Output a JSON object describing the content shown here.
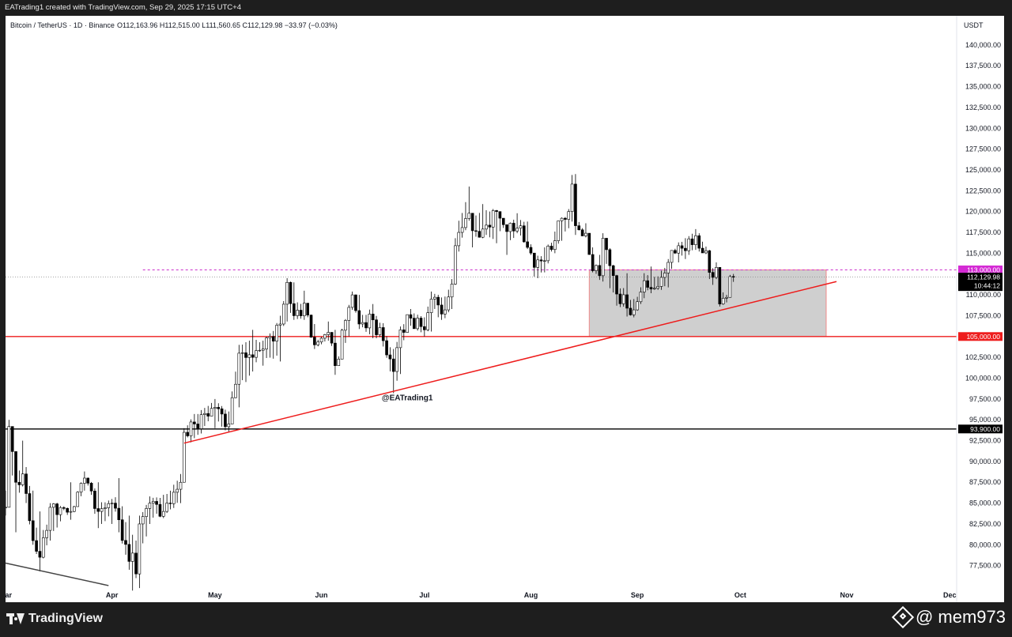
{
  "header": {
    "credit": "EATrading1 created with TradingView.com, Sep 29, 2025 17:15 UTC+4"
  },
  "colors": {
    "up": "#ffffff",
    "down": "#000000",
    "wick": "#000000",
    "support_line": "#ee1c1c",
    "trendline": "#ee1c1c",
    "black_line": "#000000",
    "resistance_dashed": "#cc2fcc",
    "zone_fill": "#cfcfcf"
  },
  "chart_data": {
    "type": "candlestick",
    "title": "Bitcoin / TetherUS · 1D · Binance",
    "ohlc_label": "O112,163.96 H112,515.00 L111,560.65 C112,129.98 −33.97 (−0.03%)",
    "currency": "USDT",
    "ylim": [
      75000,
      143500
    ],
    "y_ticks": [
      77500,
      80000,
      82500,
      85000,
      87500,
      90000,
      92500,
      95000,
      97500,
      100000,
      102500,
      105000,
      107500,
      110000,
      112500,
      115000,
      117500,
      120000,
      122500,
      125000,
      127500,
      130000,
      132500,
      135000,
      137500,
      140000
    ],
    "y_tick_labels": [
      "77,500.00",
      "80,000.00",
      "82,500.00",
      "85,000.00",
      "87,500.00",
      "90,000.00",
      "92,500.00",
      "95,000.00",
      "97,500.00",
      "100,000.00",
      "102,500.00",
      "105,000.00",
      "107,500.00",
      "110,000.00",
      "112,500.00",
      "115,000.00",
      "117,500.00",
      "120,000.00",
      "122,500.00",
      "125,000.00",
      "127,500.00",
      "130,000.00",
      "132,500.00",
      "135,000.00",
      "137,500.00",
      "140,000.00"
    ],
    "xlim": [
      "2025-03-01",
      "2025-12-03"
    ],
    "x_ticks": [
      {
        "date": "2025-03-01",
        "label": "Mar"
      },
      {
        "date": "2025-04-01",
        "label": "Apr"
      },
      {
        "date": "2025-05-01",
        "label": "May"
      },
      {
        "date": "2025-06-01",
        "label": "Jun"
      },
      {
        "date": "2025-07-01",
        "label": "Jul"
      },
      {
        "date": "2025-08-01",
        "label": "Aug"
      },
      {
        "date": "2025-09-01",
        "label": "Sep"
      },
      {
        "date": "2025-10-01",
        "label": "Oct"
      },
      {
        "date": "2025-11-01",
        "label": "Nov"
      },
      {
        "date": "2025-12-01",
        "label": "Dec"
      }
    ],
    "anchors": [
      {
        "date": "2025-03-01",
        "close": 84500,
        "high": 86500,
        "low": 83500
      },
      {
        "date": "2025-03-02",
        "close": 94200,
        "high": 95000,
        "low": 85000
      },
      {
        "date": "2025-03-04",
        "close": 87500,
        "high": 88500,
        "low": 81500
      },
      {
        "date": "2025-03-06",
        "close": 88500,
        "high": 92500,
        "low": 87000
      },
      {
        "date": "2025-03-09",
        "close": 80500,
        "high": 86500,
        "low": 80000
      },
      {
        "date": "2025-03-11",
        "close": 78500,
        "high": 84000,
        "low": 76800
      },
      {
        "date": "2025-03-14",
        "close": 84500,
        "high": 85000,
        "low": 80500
      },
      {
        "date": "2025-03-20",
        "close": 84000,
        "high": 87500,
        "low": 83000
      },
      {
        "date": "2025-03-24",
        "close": 88000,
        "high": 88800,
        "low": 86500
      },
      {
        "date": "2025-03-28",
        "close": 84000,
        "high": 87500,
        "low": 82000
      },
      {
        "date": "2025-04-01",
        "close": 85000,
        "high": 85500,
        "low": 82500
      },
      {
        "date": "2025-04-03",
        "close": 83000,
        "high": 88000,
        "low": 81500
      },
      {
        "date": "2025-04-06",
        "close": 78000,
        "high": 83500,
        "low": 77000
      },
      {
        "date": "2025-04-07",
        "close": 79000,
        "high": 81200,
        "low": 74500
      },
      {
        "date": "2025-04-08",
        "close": 76500,
        "high": 80500,
        "low": 76000
      },
      {
        "date": "2025-04-09",
        "close": 82500,
        "high": 83500,
        "low": 74800
      },
      {
        "date": "2025-04-12",
        "close": 85000,
        "high": 85800,
        "low": 82500
      },
      {
        "date": "2025-04-16",
        "close": 84000,
        "high": 86000,
        "low": 83200
      },
      {
        "date": "2025-04-21",
        "close": 87500,
        "high": 88500,
        "low": 85000
      },
      {
        "date": "2025-04-22",
        "close": 93500,
        "high": 94000,
        "low": 87500
      },
      {
        "date": "2025-04-25",
        "close": 94500,
        "high": 95700,
        "low": 92800
      },
      {
        "date": "2025-05-01",
        "close": 96500,
        "high": 97500,
        "low": 94000
      },
      {
        "date": "2025-05-05",
        "close": 94500,
        "high": 96000,
        "low": 93500
      },
      {
        "date": "2025-05-08",
        "close": 103000,
        "high": 104000,
        "low": 96500
      },
      {
        "date": "2025-05-12",
        "close": 102500,
        "high": 105800,
        "low": 100800
      },
      {
        "date": "2025-05-15",
        "close": 103500,
        "high": 104500,
        "low": 101500
      },
      {
        "date": "2025-05-20",
        "close": 106500,
        "high": 107500,
        "low": 102000
      },
      {
        "date": "2025-05-22",
        "close": 111500,
        "high": 112000,
        "low": 106800
      },
      {
        "date": "2025-05-24",
        "close": 107500,
        "high": 111500,
        "low": 107000
      },
      {
        "date": "2025-05-27",
        "close": 109000,
        "high": 110500,
        "low": 107000
      },
      {
        "date": "2025-05-30",
        "close": 104000,
        "high": 106500,
        "low": 103500
      },
      {
        "date": "2025-06-03",
        "close": 105500,
        "high": 106800,
        "low": 104500
      },
      {
        "date": "2025-06-05",
        "close": 101500,
        "high": 105800,
        "low": 100400
      },
      {
        "date": "2025-06-09",
        "close": 108500,
        "high": 108800,
        "low": 105000
      },
      {
        "date": "2025-06-10",
        "close": 110000,
        "high": 110400,
        "low": 108200
      },
      {
        "date": "2025-06-12",
        "close": 106500,
        "high": 110000,
        "low": 105900
      },
      {
        "date": "2025-06-16",
        "close": 107000,
        "high": 108900,
        "low": 104800
      },
      {
        "date": "2025-06-19",
        "close": 104500,
        "high": 106600,
        "low": 103800
      },
      {
        "date": "2025-06-22",
        "close": 100800,
        "high": 103500,
        "low": 98200
      },
      {
        "date": "2025-06-24",
        "close": 105800,
        "high": 106200,
        "low": 100500
      },
      {
        "date": "2025-06-27",
        "close": 107200,
        "high": 108300,
        "low": 106300
      },
      {
        "date": "2025-07-01",
        "close": 105800,
        "high": 107300,
        "low": 105000
      },
      {
        "date": "2025-07-03",
        "close": 109500,
        "high": 110400,
        "low": 105600
      },
      {
        "date": "2025-07-07",
        "close": 108200,
        "high": 109800,
        "low": 107200
      },
      {
        "date": "2025-07-09",
        "close": 111300,
        "high": 111900,
        "low": 108300
      },
      {
        "date": "2025-07-10",
        "close": 115900,
        "high": 116800,
        "low": 111200
      },
      {
        "date": "2025-07-11",
        "close": 117500,
        "high": 118900,
        "low": 115200
      },
      {
        "date": "2025-07-14",
        "close": 119800,
        "high": 123000,
        "low": 118900
      },
      {
        "date": "2025-07-15",
        "close": 117700,
        "high": 119600,
        "low": 115700
      },
      {
        "date": "2025-07-18",
        "close": 117900,
        "high": 120900,
        "low": 116800
      },
      {
        "date": "2025-07-22",
        "close": 120000,
        "high": 120200,
        "low": 116200
      },
      {
        "date": "2025-07-25",
        "close": 117600,
        "high": 118200,
        "low": 114800
      },
      {
        "date": "2025-07-28",
        "close": 118000,
        "high": 119800,
        "low": 117400
      },
      {
        "date": "2025-07-31",
        "close": 115700,
        "high": 118800,
        "low": 115500
      },
      {
        "date": "2025-08-02",
        "close": 113300,
        "high": 114000,
        "low": 112200
      },
      {
        "date": "2025-08-03",
        "close": 114200,
        "high": 114700,
        "low": 112000
      },
      {
        "date": "2025-08-05",
        "close": 114100,
        "high": 115700,
        "low": 112700
      },
      {
        "date": "2025-08-08",
        "close": 116500,
        "high": 117600,
        "low": 115000
      },
      {
        "date": "2025-08-10",
        "close": 119200,
        "high": 119300,
        "low": 116500
      },
      {
        "date": "2025-08-12",
        "close": 120000,
        "high": 120300,
        "low": 118000
      },
      {
        "date": "2025-08-13",
        "close": 123300,
        "high": 124400,
        "low": 118800
      },
      {
        "date": "2025-08-14",
        "close": 118300,
        "high": 124500,
        "low": 117200
      },
      {
        "date": "2025-08-17",
        "close": 117400,
        "high": 118600,
        "low": 116900
      },
      {
        "date": "2025-08-19",
        "close": 112900,
        "high": 115700,
        "low": 112700
      },
      {
        "date": "2025-08-21",
        "close": 112300,
        "high": 114800,
        "low": 111800
      },
      {
        "date": "2025-08-22",
        "close": 116800,
        "high": 117400,
        "low": 111600
      },
      {
        "date": "2025-08-24",
        "close": 113500,
        "high": 115600,
        "low": 110800
      },
      {
        "date": "2025-08-26",
        "close": 110100,
        "high": 112400,
        "low": 108700
      },
      {
        "date": "2025-08-29",
        "close": 108400,
        "high": 112600,
        "low": 107400
      },
      {
        "date": "2025-08-31",
        "close": 108200,
        "high": 109500,
        "low": 107300
      },
      {
        "date": "2025-09-03",
        "close": 111700,
        "high": 112600,
        "low": 109600
      },
      {
        "date": "2025-09-05",
        "close": 110700,
        "high": 113400,
        "low": 110200
      },
      {
        "date": "2025-09-08",
        "close": 112100,
        "high": 112900,
        "low": 110600
      },
      {
        "date": "2025-09-10",
        "close": 113900,
        "high": 114300,
        "low": 110900
      },
      {
        "date": "2025-09-13",
        "close": 115900,
        "high": 116300,
        "low": 113900
      },
      {
        "date": "2025-09-15",
        "close": 115300,
        "high": 116800,
        "low": 114300
      },
      {
        "date": "2025-09-18",
        "close": 117100,
        "high": 117900,
        "low": 115400
      },
      {
        "date": "2025-09-19",
        "close": 115600,
        "high": 117400,
        "low": 115200
      },
      {
        "date": "2025-09-21",
        "close": 115300,
        "high": 115800,
        "low": 114900
      },
      {
        "date": "2025-09-22",
        "close": 112700,
        "high": 115400,
        "low": 111900
      },
      {
        "date": "2025-09-23",
        "close": 112100,
        "high": 113200,
        "low": 111200
      },
      {
        "date": "2025-09-24",
        "close": 113300,
        "high": 113900,
        "low": 111900
      },
      {
        "date": "2025-09-25",
        "close": 108900,
        "high": 113300,
        "low": 108600
      },
      {
        "date": "2025-09-26",
        "close": 109600,
        "high": 110300,
        "low": 108800
      },
      {
        "date": "2025-09-27",
        "close": 109700,
        "high": 110000,
        "low": 109100
      },
      {
        "date": "2025-09-28",
        "close": 112200,
        "high": 112400,
        "low": 109700
      },
      {
        "date": "2025-09-29",
        "close": 112130,
        "high": 112515,
        "low": 111560
      }
    ],
    "horizontal_lines": [
      {
        "name": "support",
        "value": 105000,
        "label": "105,000.00",
        "style": "solid",
        "color": "#ee1c1c"
      },
      {
        "name": "black-level",
        "value": 93900,
        "label": "93,900.00",
        "style": "solid",
        "color": "#000000"
      },
      {
        "name": "resistance",
        "value": 113000,
        "label": "113,000.00",
        "style": "dashed",
        "color": "#cc2fcc",
        "start": "2025-04-10"
      }
    ],
    "current_price": {
      "value": 112129.98,
      "label": "112,129.98",
      "countdown": "10:44:12"
    },
    "zone": {
      "x_start": "2025-08-18",
      "x_end": "2025-10-26",
      "y_low": 105000,
      "y_high": 113000
    },
    "trendlines": [
      {
        "name": "trendline-up",
        "from": {
          "date": "2025-04-22",
          "value": 92200
        },
        "to": {
          "date": "2025-10-29",
          "value": 111600
        },
        "color": "#ee1c1c"
      },
      {
        "name": "trendline-old",
        "from": {
          "date": "2025-03-01",
          "value": 77800
        },
        "to": {
          "date": "2025-03-31",
          "value": 75100
        },
        "color": "#444444"
      }
    ],
    "annotation": {
      "text": "@EATrading1",
      "date": "2025-06-26",
      "value": 97700
    }
  },
  "footer": {
    "brand": "TradingView",
    "watermark": "@ mem973"
  }
}
